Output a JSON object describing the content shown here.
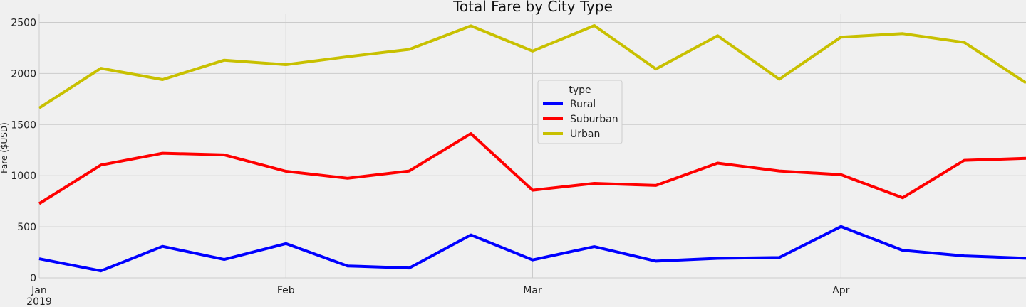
{
  "chart_data": {
    "type": "line",
    "title": "Total Fare by City Type",
    "xlabel": "",
    "ylabel": "Fare ($USD)",
    "ylim": [
      0,
      2580
    ],
    "yticks": [
      0,
      500,
      1000,
      1500,
      2000,
      2500
    ],
    "grid": true,
    "legend": {
      "title": "type",
      "placement": "center-top"
    },
    "x": [
      "2019-01-06",
      "2019-01-13",
      "2019-01-20",
      "2019-01-27",
      "2019-02-03",
      "2019-02-10",
      "2019-02-17",
      "2019-02-24",
      "2019-03-03",
      "2019-03-10",
      "2019-03-17",
      "2019-03-24",
      "2019-03-31",
      "2019-04-07",
      "2019-04-14",
      "2019-04-21",
      "2019-04-28"
    ],
    "xticks": [
      {
        "date": "2019-01-06",
        "label": "Jan",
        "sublabel": "2019"
      },
      {
        "date": "2019-02-03",
        "label": "Feb",
        "sublabel": ""
      },
      {
        "date": "2019-03-03",
        "label": "Mar",
        "sublabel": ""
      },
      {
        "date": "2019-04-07",
        "label": "Apr",
        "sublabel": ""
      }
    ],
    "series": [
      {
        "name": "Rural",
        "color": "#0000ff",
        "values": [
          187,
          68,
          308,
          180,
          335,
          117,
          97,
          420,
          176,
          305,
          164,
          191,
          199,
          502,
          270,
          215,
          192
        ]
      },
      {
        "name": "Suburban",
        "color": "#ff0000",
        "values": [
          727,
          1104,
          1220,
          1204,
          1043,
          975,
          1046,
          1412,
          858,
          925,
          905,
          1123,
          1046,
          1010,
          784,
          1150,
          1170
        ]
      },
      {
        "name": "Urban",
        "color": "#c8c000",
        "values": [
          1662,
          2051,
          1940,
          2130,
          2086,
          2164,
          2236,
          2466,
          2219,
          2469,
          2044,
          2369,
          1944,
          2356,
          2390,
          2304,
          1908
        ]
      }
    ]
  }
}
